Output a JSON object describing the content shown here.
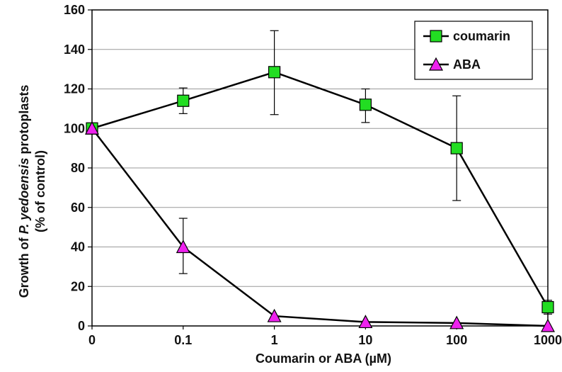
{
  "chart_data": {
    "type": "line",
    "categories": [
      "0",
      "0.1",
      "1",
      "10",
      "100",
      "1000"
    ],
    "series": [
      {
        "name": "coumarin",
        "marker": "square",
        "color": "#22dd22",
        "values": [
          100,
          114,
          128.5,
          112,
          90,
          9.5
        ],
        "error_low": [
          100,
          107.5,
          107,
          103,
          63.5,
          6
        ],
        "error_high": [
          100,
          120.5,
          149.5,
          120,
          116.5,
          13
        ]
      },
      {
        "name": "ABA",
        "marker": "triangle",
        "color": "#ee22ee",
        "values": [
          100,
          40,
          5,
          2,
          1.5,
          0
        ],
        "error_low": [
          100,
          26.5,
          5,
          2,
          1.5,
          0
        ],
        "error_high": [
          100,
          54.5,
          5,
          2,
          1.5,
          0
        ]
      }
    ],
    "xlabel": "Coumarin or ABA (µM)",
    "ylabel_line1_pre": "Growth of ",
    "ylabel_line1_italic": "P. yedoensis",
    "ylabel_line1_post": " protoplasts",
    "ylabel_line2": "(% of control)",
    "ylim": [
      0,
      160
    ],
    "yticks": [
      0,
      20,
      40,
      60,
      80,
      100,
      120,
      140,
      160
    ],
    "grid": true,
    "legend_position": "top-right"
  }
}
